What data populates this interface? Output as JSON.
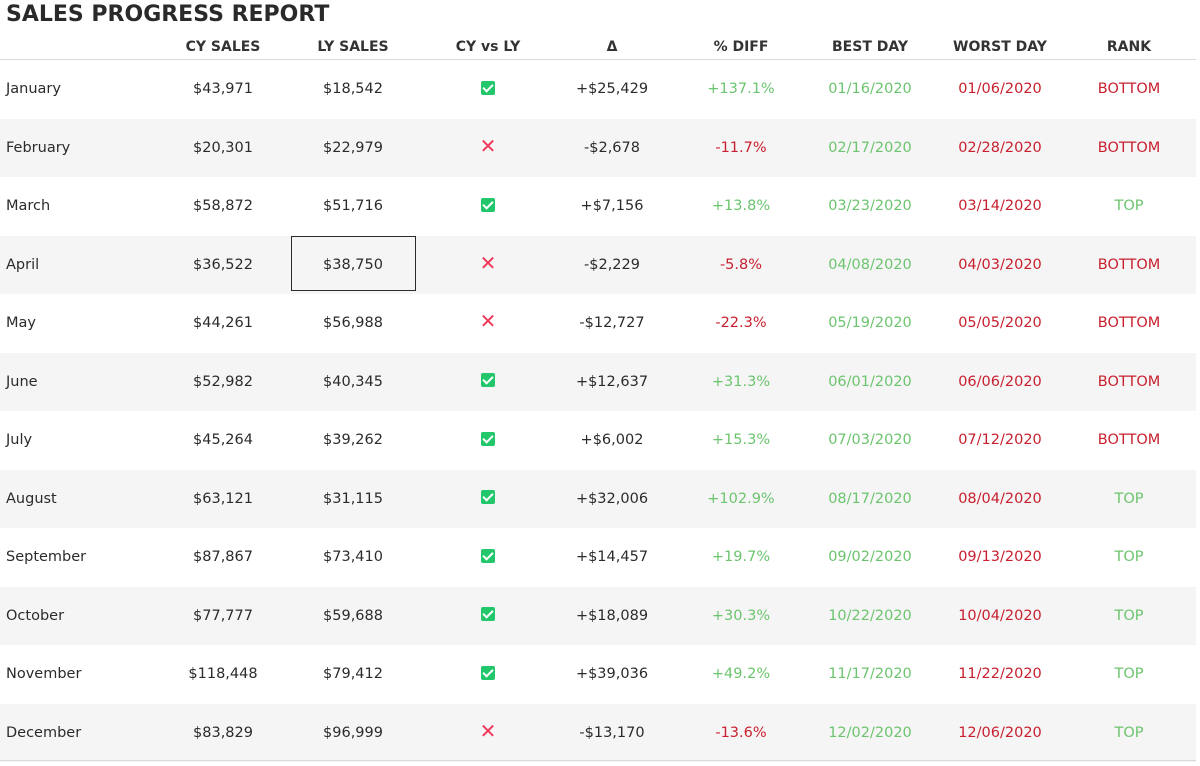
{
  "title": "SALES PROGRESS REPORT",
  "headers": {
    "cy_sales": "CY SALES",
    "ly_sales": "LY SALES",
    "cy_vs_ly": "CY vs LY",
    "delta": "Δ",
    "pct_diff": "% DIFF",
    "best_day": "BEST DAY",
    "worst_day": "WORST DAY",
    "rank": "RANK"
  },
  "rows": [
    {
      "month": "January",
      "cy": "$43,971",
      "ly": "$18,542",
      "status": "up",
      "delta": "+$25,429",
      "pct": "+137.1%",
      "best": "01/16/2020",
      "worst": "01/06/2020",
      "rank": "BOTTOM"
    },
    {
      "month": "February",
      "cy": "$20,301",
      "ly": "$22,979",
      "status": "down",
      "delta": "-$2,678",
      "pct": "-11.7%",
      "best": "02/17/2020",
      "worst": "02/28/2020",
      "rank": "BOTTOM"
    },
    {
      "month": "March",
      "cy": "$58,872",
      "ly": "$51,716",
      "status": "up",
      "delta": "+$7,156",
      "pct": "+13.8%",
      "best": "03/23/2020",
      "worst": "03/14/2020",
      "rank": "TOP"
    },
    {
      "month": "April",
      "cy": "$36,522",
      "ly": "$38,750",
      "status": "down",
      "delta": "-$2,229",
      "pct": "-5.8%",
      "best": "04/08/2020",
      "worst": "04/03/2020",
      "rank": "BOTTOM"
    },
    {
      "month": "May",
      "cy": "$44,261",
      "ly": "$56,988",
      "status": "down",
      "delta": "-$12,727",
      "pct": "-22.3%",
      "best": "05/19/2020",
      "worst": "05/05/2020",
      "rank": "BOTTOM"
    },
    {
      "month": "June",
      "cy": "$52,982",
      "ly": "$40,345",
      "status": "up",
      "delta": "+$12,637",
      "pct": "+31.3%",
      "best": "06/01/2020",
      "worst": "06/06/2020",
      "rank": "BOTTOM"
    },
    {
      "month": "July",
      "cy": "$45,264",
      "ly": "$39,262",
      "status": "up",
      "delta": "+$6,002",
      "pct": "+15.3%",
      "best": "07/03/2020",
      "worst": "07/12/2020",
      "rank": "BOTTOM"
    },
    {
      "month": "August",
      "cy": "$63,121",
      "ly": "$31,115",
      "status": "up",
      "delta": "+$32,006",
      "pct": "+102.9%",
      "best": "08/17/2020",
      "worst": "08/04/2020",
      "rank": "TOP"
    },
    {
      "month": "September",
      "cy": "$87,867",
      "ly": "$73,410",
      "status": "up",
      "delta": "+$14,457",
      "pct": "+19.7%",
      "best": "09/02/2020",
      "worst": "09/13/2020",
      "rank": "TOP"
    },
    {
      "month": "October",
      "cy": "$77,777",
      "ly": "$59,688",
      "status": "up",
      "delta": "+$18,089",
      "pct": "+30.3%",
      "best": "10/22/2020",
      "worst": "10/04/2020",
      "rank": "TOP"
    },
    {
      "month": "November",
      "cy": "$118,448",
      "ly": "$79,412",
      "status": "up",
      "delta": "+$39,036",
      "pct": "+49.2%",
      "best": "11/17/2020",
      "worst": "11/22/2020",
      "rank": "TOP"
    },
    {
      "month": "December",
      "cy": "$83,829",
      "ly": "$96,999",
      "status": "down",
      "delta": "-$13,170",
      "pct": "-13.6%",
      "best": "12/02/2020",
      "worst": "12/06/2020",
      "rank": "TOP"
    }
  ],
  "selected_row": 3,
  "selected_column": "ly",
  "colors": {
    "positive": "#6cc46e",
    "negative": "#c8202f",
    "check": "#22c76b",
    "cross": "#f0385a",
    "alt_row": "#f5f5f5"
  },
  "icons": {
    "up": "check-icon",
    "down": "cross-icon"
  }
}
